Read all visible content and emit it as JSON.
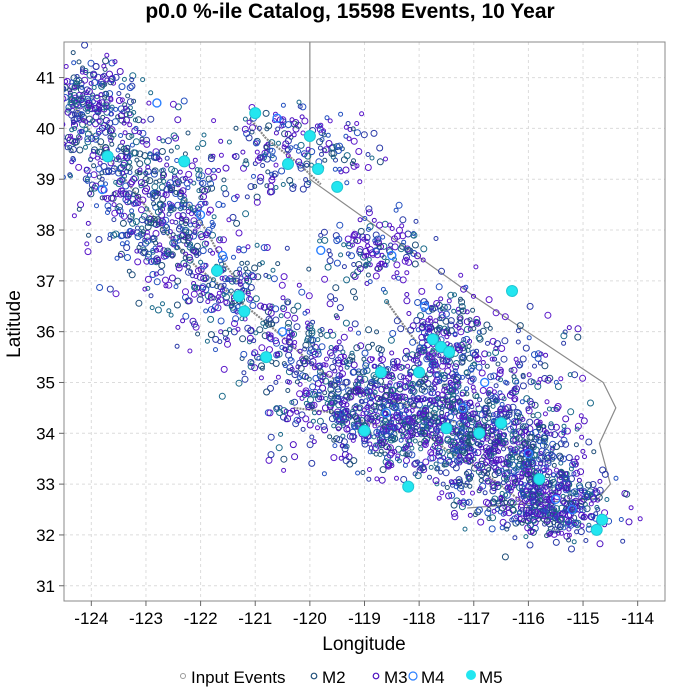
{
  "chart_data": {
    "type": "scatter",
    "title": "p0.0 %-ile Catalog, 15598 Events, 10 Year",
    "xlabel": "Longitude",
    "ylabel": "Latitude",
    "xlim": [
      -124.5,
      -113.5
    ],
    "ylim": [
      30.7,
      41.7
    ],
    "xticks": [
      -124,
      -123,
      -122,
      -121,
      -120,
      -119,
      -118,
      -117,
      -116,
      -115,
      -114
    ],
    "yticks": [
      31,
      32,
      33,
      34,
      35,
      36,
      37,
      38,
      39,
      40,
      41
    ],
    "grid": true,
    "legend_position": "bottom",
    "legend": [
      {
        "label": "Input Events",
        "marker": "small-open-circle",
        "color": "#999999"
      },
      {
        "label": "M2",
        "marker": "open-circle",
        "color": "#1f4e79"
      },
      {
        "label": "M3",
        "marker": "open-circle",
        "color": "#4b0fbf"
      },
      {
        "label": "M4",
        "marker": "open-circle",
        "color": "#2a7fff"
      },
      {
        "label": "M5",
        "marker": "filled-circle",
        "color": "#22e6f0"
      }
    ],
    "series": [
      {
        "name": "M5",
        "points": [
          [
            -123.7,
            39.45
          ],
          [
            -122.3,
            39.35
          ],
          [
            -121.0,
            40.3
          ],
          [
            -120.4,
            39.3
          ],
          [
            -120.0,
            39.85
          ],
          [
            -119.85,
            39.2
          ],
          [
            -119.5,
            38.85
          ],
          [
            -121.7,
            37.2
          ],
          [
            -121.3,
            36.7
          ],
          [
            -121.2,
            36.4
          ],
          [
            -119.0,
            34.05
          ],
          [
            -118.2,
            32.95
          ],
          [
            -117.75,
            35.85
          ],
          [
            -117.6,
            35.7
          ],
          [
            -117.45,
            35.6
          ],
          [
            -118.7,
            35.2
          ],
          [
            -118.0,
            35.2
          ],
          [
            -117.5,
            34.1
          ],
          [
            -116.9,
            34.0
          ],
          [
            -116.5,
            34.2
          ],
          [
            -116.3,
            36.8
          ],
          [
            -115.8,
            33.1
          ],
          [
            -114.75,
            32.1
          ],
          [
            -114.65,
            32.3
          ],
          [
            -120.8,
            35.5
          ]
        ]
      },
      {
        "name": "M4",
        "points": [
          [
            -123.8,
            38.8
          ],
          [
            -122.0,
            38.3
          ],
          [
            -121.6,
            37.5
          ],
          [
            -120.5,
            36.0
          ],
          [
            -119.8,
            37.6
          ],
          [
            -118.5,
            37.5
          ],
          [
            -117.9,
            36.5
          ],
          [
            -117.2,
            34.5
          ],
          [
            -116.0,
            33.6
          ],
          [
            -115.5,
            32.7
          ],
          [
            -118.6,
            34.4
          ],
          [
            -120.6,
            40.2
          ],
          [
            -122.8,
            40.5
          ],
          [
            -116.8,
            35.0
          ],
          [
            -115.2,
            32.5
          ]
        ]
      }
    ],
    "fault_traces": [
      [
        [
          -124.4,
          40.6
        ],
        [
          -124.0,
          39.9
        ],
        [
          -123.6,
          39.3
        ],
        [
          -123.1,
          38.6
        ],
        [
          -122.6,
          37.9
        ],
        [
          -122.1,
          37.3
        ],
        [
          -121.4,
          36.7
        ],
        [
          -120.6,
          36.0
        ],
        [
          -119.9,
          35.3
        ],
        [
          -119.3,
          34.9
        ],
        [
          -118.7,
          34.7
        ],
        [
          -118.0,
          34.5
        ],
        [
          -117.3,
          34.2
        ],
        [
          -116.6,
          33.9
        ],
        [
          -116.0,
          33.4
        ],
        [
          -115.6,
          32.9
        ]
      ],
      [
        [
          -122.4,
          38.8
        ],
        [
          -121.9,
          38.0
        ],
        [
          -121.6,
          37.4
        ],
        [
          -121.2,
          36.8
        ]
      ],
      [
        [
          -117.9,
          34.0
        ],
        [
          -117.4,
          33.6
        ],
        [
          -116.9,
          33.3
        ],
        [
          -116.3,
          32.8
        ],
        [
          -115.8,
          32.4
        ]
      ],
      [
        [
          -118.6,
          36.6
        ],
        [
          -118.2,
          36.0
        ],
        [
          -117.9,
          35.6
        ],
        [
          -117.6,
          35.2
        ]
      ],
      [
        [
          -120.3,
          34.5
        ],
        [
          -119.5,
          34.4
        ],
        [
          -118.9,
          34.2
        ],
        [
          -118.3,
          34.0
        ]
      ],
      [
        [
          -121.1,
          40.2
        ],
        [
          -120.8,
          39.8
        ],
        [
          -120.2,
          39.3
        ],
        [
          -119.8,
          38.9
        ]
      ]
    ],
    "state_boundary": [
      [
        -120.0,
        41.7
      ],
      [
        -120.0,
        39.0
      ],
      [
        -117.0,
        36.7
      ],
      [
        -114.63,
        35.0
      ],
      [
        -114.4,
        34.5
      ],
      [
        -114.7,
        33.8
      ],
      [
        -114.5,
        33.0
      ],
      [
        -114.72,
        32.72
      ]
    ],
    "mexico_border": [
      [
        -117.12,
        32.53
      ],
      [
        -114.72,
        32.72
      ]
    ]
  }
}
